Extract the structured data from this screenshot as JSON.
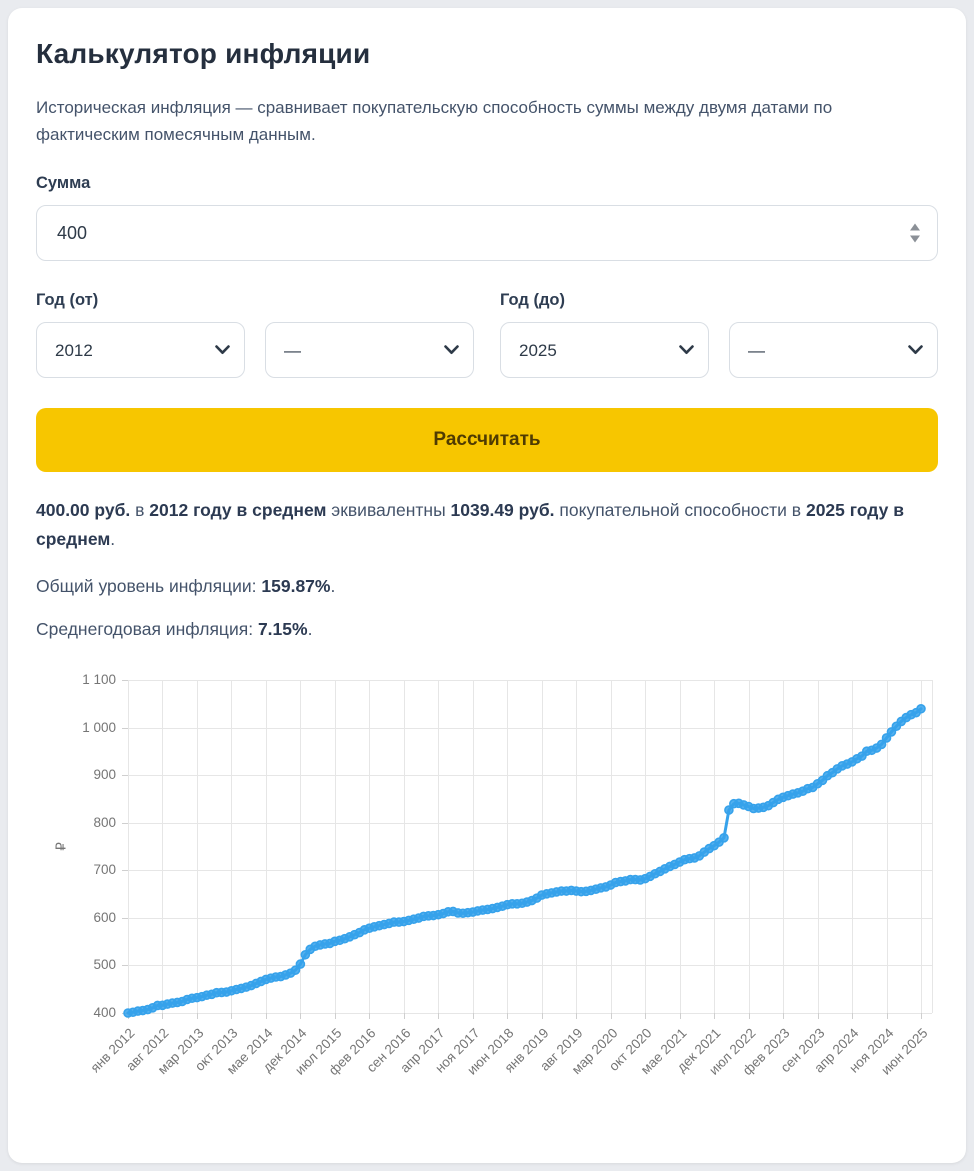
{
  "page": {
    "background": "#e9ebef",
    "card_background": "#ffffff"
  },
  "header": {
    "title": "Калькулятор инфляции"
  },
  "description": "Историческая инфляция — сравнивает покупательскую способность суммы между двумя датами по фактическим помесячным данным.",
  "form": {
    "amount_label": "Сумма",
    "amount_value": "400",
    "year_from_label": "Год (от)",
    "year_from_value": "2012",
    "month_from_value": "—",
    "year_to_label": "Год (до)",
    "year_to_value": "2025",
    "month_to_value": "—",
    "submit_label": "Рассчитать",
    "submit_bg": "#f7c600",
    "submit_text_color": "#4f3b02"
  },
  "result": {
    "segments": [
      {
        "text": "400.00 руб.",
        "bold": true
      },
      {
        "text": " в ",
        "bold": false
      },
      {
        "text": "2012 году в среднем",
        "bold": true
      },
      {
        "text": " эквивалентны ",
        "bold": false
      },
      {
        "text": "1039.49 руб.",
        "bold": true
      },
      {
        "text": " покупательной способности в ",
        "bold": false
      },
      {
        "text": "2025 году в среднем",
        "bold": true
      },
      {
        "text": ".",
        "bold": false
      }
    ],
    "total_inflation_label": "Общий уровень инфляции: ",
    "total_inflation_value": "159.87%",
    "total_inflation_suffix": ".",
    "annual_inflation_label": "Среднегодовая инфляция: ",
    "annual_inflation_value": "7.15%",
    "annual_inflation_suffix": "."
  },
  "chart_data": {
    "type": "line",
    "title": "",
    "xlabel": "",
    "ylabel": "₽",
    "x_start": "2012-01",
    "x_end": "2025-06",
    "x_step_months": 1,
    "ylim": [
      400,
      1100
    ],
    "y_ticks": [
      400,
      500,
      600,
      700,
      800,
      900,
      1000,
      1100
    ],
    "grid": true,
    "legend": "none",
    "line_color": "#36a2eb",
    "grid_color": "#e6e6e6",
    "tick_label_color": "#757575",
    "x_tick_interval": 7,
    "x_tick_labels": [
      "янв 2012",
      "авг 2012",
      "мар 2013",
      "окт 2013",
      "мае 2014",
      "дек 2014",
      "июл 2015",
      "фев 2016",
      "сен 2016",
      "апр 2017",
      "ноя 2017",
      "июн 2018",
      "янв 2019",
      "авг 2019",
      "мар 2020",
      "окт 2020",
      "мае 2021",
      "дек 2021",
      "июл 2022",
      "фев 2023",
      "сен 2023",
      "апр 2024",
      "ноя 2024",
      "июн 2025"
    ],
    "values": [
      400,
      401.6,
      404,
      405.2,
      407.2,
      410.9,
      415.8,
      416.2,
      418.7,
      420.8,
      422.1,
      424.2,
      428.4,
      431,
      432.3,
      434.4,
      437.5,
      439.2,
      442.7,
      443.2,
      444.1,
      446.7,
      449.4,
      451.7,
      454.4,
      457.6,
      462.1,
      466.3,
      470.5,
      473.3,
      475.7,
      476.6,
      480,
      483.8,
      490.1,
      502.8,
      522.4,
      533.9,
      540.3,
      543,
      545.2,
      546.3,
      550.7,
      552.9,
      556.2,
      560.1,
      564.6,
      569.1,
      574.8,
      578.3,
      581.2,
      583.5,
      585.8,
      588.2,
      591.1,
      591.1,
      592.3,
      594.7,
      597.1,
      599.5,
      603.1,
      604.3,
      604.9,
      606.7,
      609.1,
      612.8,
      613.4,
      610.3,
      609.7,
      610.9,
      612.1,
      614.6,
      616.4,
      617.6,
      619.5,
      622,
      624.5,
      627.6,
      629.5,
      629.5,
      630.7,
      633.2,
      636.4,
      641.5,
      647.9,
      650.5,
      652.5,
      654.4,
      656.4,
      656.4,
      657.7,
      656.4,
      655.1,
      655.7,
      657.7,
      660.3,
      663,
      665,
      669,
      674.3,
      676.3,
      677.7,
      680.4,
      680.4,
      679.7,
      682.4,
      687.2,
      692.7,
      697.5,
      703.1,
      708,
      712.3,
      717.3,
      722.3,
      724.5,
      725.9,
      730.3,
      738.3,
      745.7,
      751.7,
      759.2,
      768.3,
      826.7,
      839.9,
      840.8,
      837.4,
      834.1,
      829.9,
      830.7,
      832.4,
      835.7,
      842.4,
      849.1,
      853.4,
      856.8,
      860.2,
      862.8,
      866.3,
      871.5,
      874.1,
      881.9,
      889,
      898.8,
      905.1,
      913.2,
      919.6,
      923.3,
      927.9,
      934.4,
      940,
      950.4,
      952.3,
      957,
      964.7,
      978.2,
      990.9,
      1002.8,
      1012.9,
      1021,
      1027.1,
      1031.2,
      1039.5
    ]
  }
}
